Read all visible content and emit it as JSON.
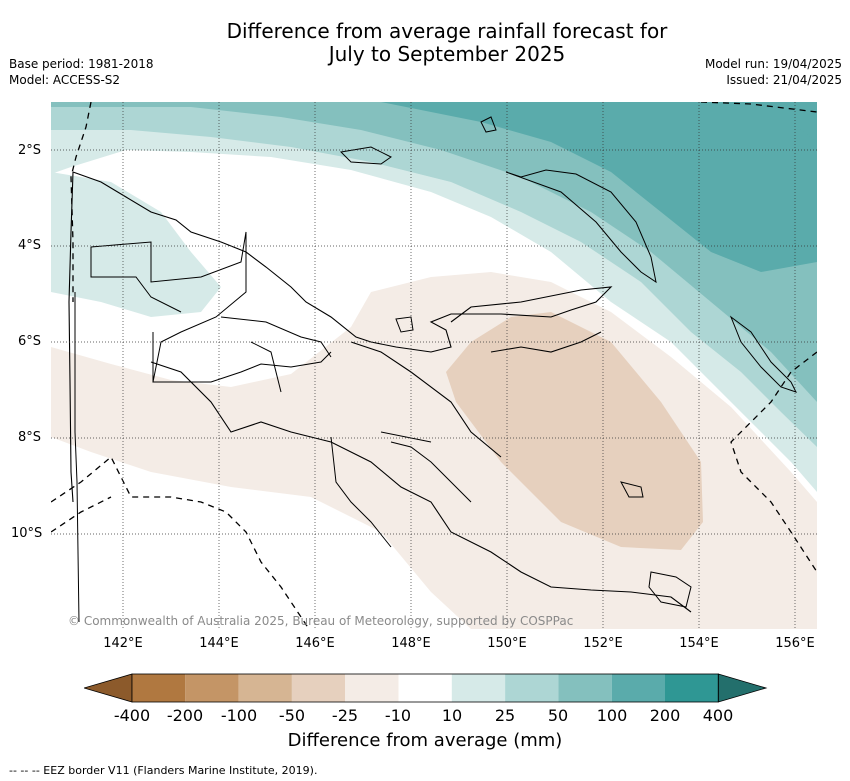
{
  "title": {
    "line1": "Difference from average rainfall forecast for",
    "line2": "July to September 2025"
  },
  "meta_left": {
    "base_period": "Base period: 1981-2018",
    "model": "Model: ACCESS-S2"
  },
  "meta_right": {
    "model_run": "Model run: 19/04/2025",
    "issued": "Issued: 21/04/2025"
  },
  "axes": {
    "lat_labels": [
      "2°S",
      "4°S",
      "6°S",
      "8°S",
      "10°S"
    ],
    "lon_labels": [
      "142°E",
      "144°E",
      "146°E",
      "148°E",
      "150°E",
      "152°E",
      "154°E",
      "156°E"
    ],
    "lon_range": [
      140.6,
      156.5
    ],
    "lat_range": [
      -12.0,
      -1.0
    ]
  },
  "copyright": "© Commonwealth of Australia 2025, Bureau of Meteorology, supported by COSPPac",
  "colorbar": {
    "title": "Difference from average (mm)",
    "labels": [
      "-400",
      "-200",
      "-100",
      "-50",
      "-25",
      "-10",
      "10",
      "25",
      "50",
      "100",
      "200",
      "400"
    ],
    "colors": {
      "lt_minus400": "#8c5a2b",
      "minus400_minus200": "#b07840",
      "minus200_minus100": "#c49566",
      "minus100_minus50": "#d6b593",
      "minus50_minus25": "#e6d0be",
      "minus25_minus10": "#f4ece6",
      "minus10_10": "#ffffff",
      "10_25": "#d6eae8",
      "25_50": "#add6d4",
      "50_100": "#84c0be",
      "100_200": "#5aabab",
      "200_400": "#2f9794",
      "gt_400": "#236f6c"
    }
  },
  "legend_note": "--  --  -- EEZ border V11 (Flanders Marine Institute, 2019)."
}
